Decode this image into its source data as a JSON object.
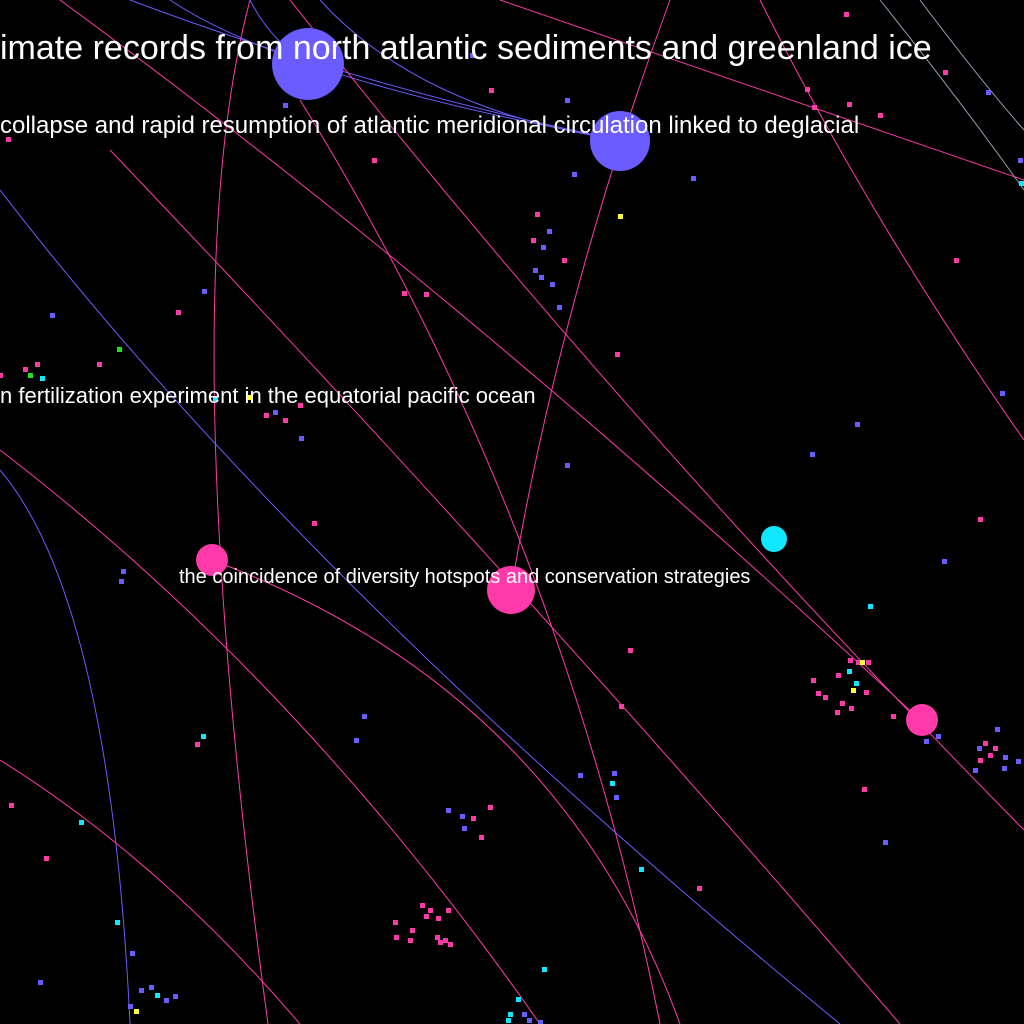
{
  "colors": {
    "background": "#000000",
    "blue": "#6a5cff",
    "pink": "#ff3aa8",
    "cyan": "#10e8ff",
    "yellow": "#ffff3a",
    "green": "#20e020",
    "label": "#ffffff"
  },
  "labels": [
    {
      "text": "imate records from north atlantic sediments and greenland ice"
    },
    {
      "text": "collapse and rapid resumption of atlantic meridional circulation linked to deglacial"
    },
    {
      "text": "n fertilization experiment in the equatorial pacific ocean"
    },
    {
      "text": "the coincidence of diversity hotspots and conservation strategies"
    }
  ]
}
